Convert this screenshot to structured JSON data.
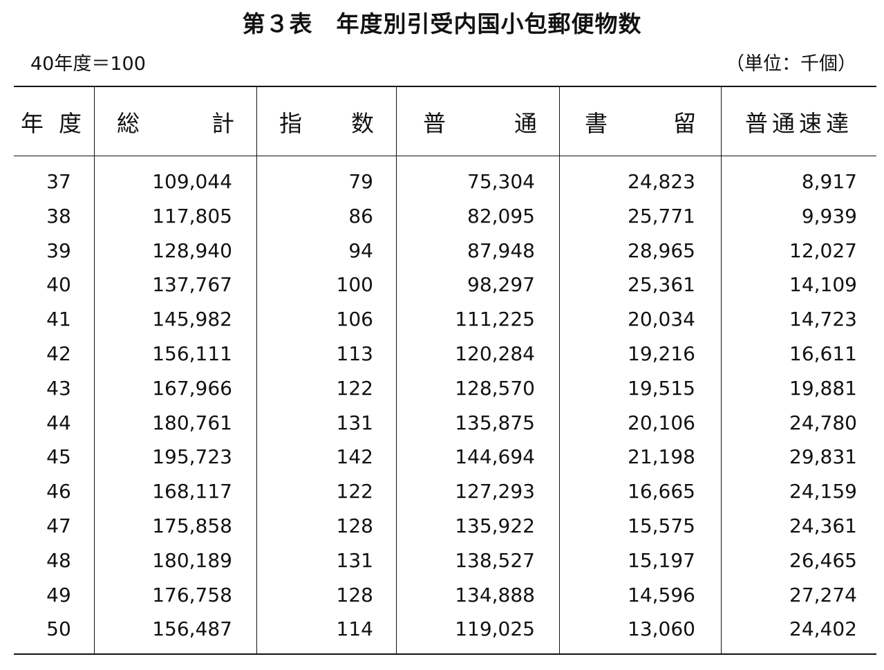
{
  "title": "第３表　年度別引受内国小包郵便物数",
  "base_note": "40年度＝100",
  "unit_note": "（単位：千個）",
  "headers": {
    "year": [
      "年",
      "度"
    ],
    "total": [
      "総",
      "計"
    ],
    "index": [
      "指",
      "数"
    ],
    "ordinary": [
      "普",
      "通"
    ],
    "registered": [
      "書",
      "留"
    ],
    "express": "普通速達"
  },
  "rows": [
    {
      "year": "37",
      "total": "109,044",
      "index": "79",
      "ordinary": "75,304",
      "registered": "24,823",
      "express": "8,917"
    },
    {
      "year": "38",
      "total": "117,805",
      "index": "86",
      "ordinary": "82,095",
      "registered": "25,771",
      "express": "9,939"
    },
    {
      "year": "39",
      "total": "128,940",
      "index": "94",
      "ordinary": "87,948",
      "registered": "28,965",
      "express": "12,027"
    },
    {
      "year": "40",
      "total": "137,767",
      "index": "100",
      "ordinary": "98,297",
      "registered": "25,361",
      "express": "14,109"
    },
    {
      "year": "41",
      "total": "145,982",
      "index": "106",
      "ordinary": "111,225",
      "registered": "20,034",
      "express": "14,723"
    },
    {
      "year": "42",
      "total": "156,111",
      "index": "113",
      "ordinary": "120,284",
      "registered": "19,216",
      "express": "16,611"
    },
    {
      "year": "43",
      "total": "167,966",
      "index": "122",
      "ordinary": "128,570",
      "registered": "19,515",
      "express": "19,881"
    },
    {
      "year": "44",
      "total": "180,761",
      "index": "131",
      "ordinary": "135,875",
      "registered": "20,106",
      "express": "24,780"
    },
    {
      "year": "45",
      "total": "195,723",
      "index": "142",
      "ordinary": "144,694",
      "registered": "21,198",
      "express": "29,831"
    },
    {
      "year": "46",
      "total": "168,117",
      "index": "122",
      "ordinary": "127,293",
      "registered": "16,665",
      "express": "24,159"
    },
    {
      "year": "47",
      "total": "175,858",
      "index": "128",
      "ordinary": "135,922",
      "registered": "15,575",
      "express": "24,361"
    },
    {
      "year": "48",
      "total": "180,189",
      "index": "131",
      "ordinary": "138,527",
      "registered": "15,197",
      "express": "26,465"
    },
    {
      "year": "49",
      "total": "176,758",
      "index": "128",
      "ordinary": "134,888",
      "registered": "14,596",
      "express": "27,274"
    },
    {
      "year": "50",
      "total": "156,487",
      "index": "114",
      "ordinary": "119,025",
      "registered": "13,060",
      "express": "24,402"
    }
  ]
}
